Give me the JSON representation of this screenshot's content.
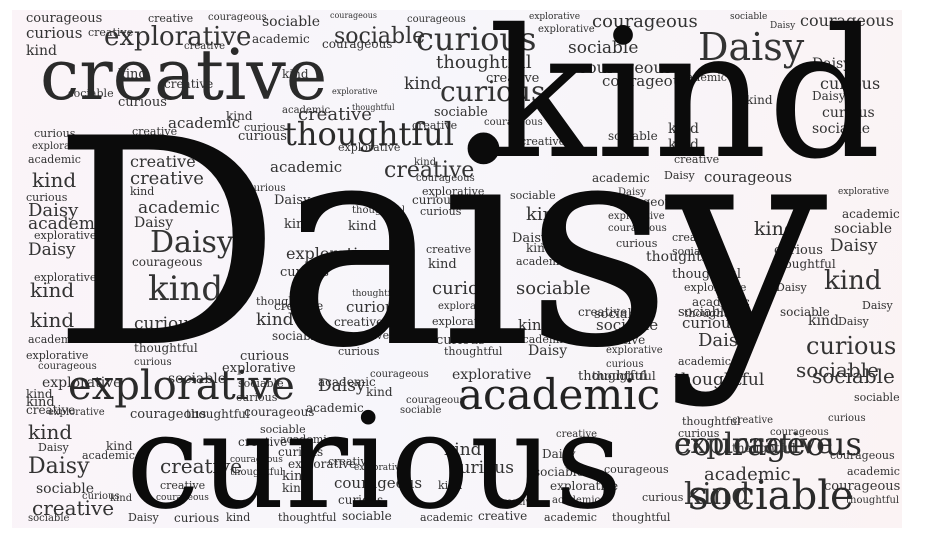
{
  "cloud": {
    "background": "#f8f4f8",
    "ink": "#111111",
    "featured": {
      "daisy": "Daisy",
      "kind": "kind",
      "curious": "curious",
      "creative": "creative",
      "explorative": "explorative",
      "academic": "academic",
      "thoughtful": "thoughtful",
      "sociable": "sociable",
      "courageous": "courageous"
    },
    "words": [
      "courageous",
      "creative",
      "courageous",
      "sociable",
      "courageous",
      "courageous",
      "explorative",
      "courageous",
      "sociable",
      "courageous",
      "curious",
      "creative",
      "explorative",
      "sociable",
      "academic",
      "curious",
      "courageous",
      "explorative",
      "Daisy",
      "Daisy",
      "sociable",
      "kind",
      "creative",
      "thoughtful",
      "courageous",
      "Daisy",
      "kind",
      "kind",
      "creative",
      "curious",
      "sociable",
      "creative",
      "kind",
      "explorative",
      "courageous",
      "academic",
      "curious",
      "Daisy",
      "curious",
      "academic",
      "thoughtful",
      "kind",
      "curious",
      "sociable",
      "creative",
      "courageous",
      "curious",
      "creative",
      "creative",
      "kind",
      "creative",
      "academic",
      "curious",
      "sociable",
      "creative",
      "kind",
      "kind",
      "explorative",
      "curious",
      "sociable",
      "creative",
      "explorative",
      "kind",
      "Daisy",
      "academic",
      "academic",
      "creative",
      "academic",
      "creative",
      "kind",
      "courageous",
      "Daisy",
      "academic",
      "Daisy",
      "kind",
      "curious",
      "curious",
      "kind",
      "courageous",
      "explorative",
      "Daisy",
      "kind",
      "explorative",
      "Daisy",
      "academic",
      "sociable",
      "Daisy",
      "thoughtful",
      "kind",
      "curious",
      "creative",
      "explorative",
      "sociable",
      "kind",
      "curious",
      "creative",
      "courageous",
      "Daisy",
      "kind",
      "thoughtful",
      "academic",
      "curious",
      "sociable",
      "explorative",
      "thoughtful",
      "explorative",
      "kind",
      "creative",
      "kind",
      "curious",
      "kind",
      "thoughtful",
      "creative",
      "kind",
      "curious",
      "sociable",
      "explorative",
      "thoughtful",
      "Daisy",
      "academic",
      "kind",
      "creative",
      "curious",
      "academic",
      "explorative",
      "sociable",
      "explorative",
      "kind",
      "sociable",
      "Daisy",
      "curious",
      "sociable",
      "sociable",
      "curious",
      "creative",
      "explorative",
      "thoughtful",
      "Daisy",
      "academic",
      "Daisy",
      "creative",
      "Daisy",
      "curious",
      "kind",
      "curious",
      "thoughtful",
      "curious",
      "academic",
      "sociable",
      "curious",
      "explorative",
      "thoughtful",
      "courageous",
      "academic",
      "kind",
      "sociable",
      "explorative",
      "sociable",
      "courageous",
      "explorative",
      "sociable",
      "kind",
      "thoughtful",
      "Daisy",
      "kind",
      "creative",
      "courageous",
      "thoughtful",
      "explorative",
      "curious",
      "academic",
      "courageous",
      "thoughtful",
      "sociable",
      "curious",
      "courageous",
      "explorative",
      "sociable",
      "curious",
      "courageous",
      "kind",
      "Daisy",
      "kind",
      "creative",
      "academic",
      "curious",
      "creative",
      "kind",
      "Daisy",
      "creative",
      "academic",
      "courageous",
      "Daisy",
      "thoughtful",
      "explorative",
      "kind",
      "creative",
      "explorative",
      "courageous",
      "sociable",
      "courageous",
      "curious",
      "explorative",
      "academic",
      "academic",
      "courageous",
      "sociable",
      "creative",
      "kind",
      "courageous",
      "kind",
      "kind",
      "curious",
      "creative",
      "courageous",
      "curious",
      "kind",
      "creative",
      "thoughtful",
      "curious",
      "Daisy",
      "curious",
      "kind",
      "thoughtful",
      "sociable",
      "academic",
      "creative",
      "academic",
      "thoughtful",
      "sociable",
      "curious",
      "explorative",
      "curious",
      "academic",
      "creative",
      "courageous",
      "thoughtful",
      "sociable",
      "kind",
      "Daisy",
      "explorative",
      "thoughtful",
      "courageous",
      "Daisy",
      "sociable",
      "thoughtful",
      "curious",
      "thoughtful",
      "creative",
      "academic",
      "curious",
      "thoughtful",
      "academic",
      "academic",
      "curious",
      "courageous",
      "creative",
      "curious",
      "academic",
      "courageous"
    ]
  }
}
